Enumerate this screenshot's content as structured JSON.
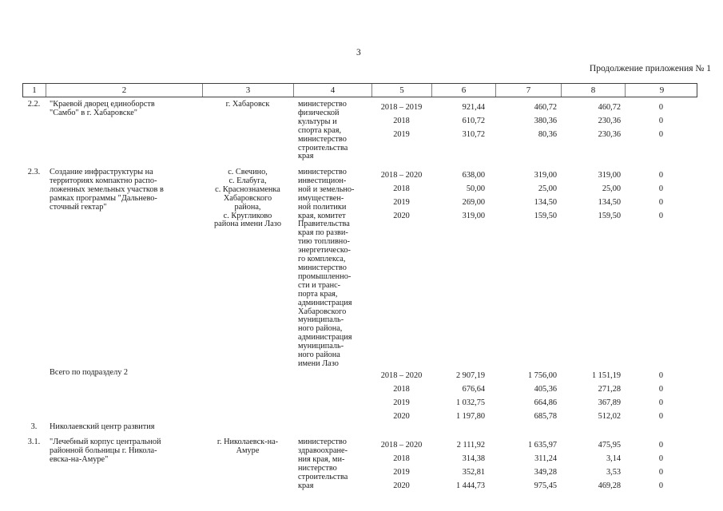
{
  "page": {
    "number": "3",
    "caption": "Продолжение приложения № 1"
  },
  "table": {
    "header_cols": [
      "1",
      "2",
      "3",
      "4",
      "5",
      "6",
      "7",
      "8",
      "9"
    ],
    "rows": [
      {
        "num": "2.2.",
        "name": "\"Краевой дворец единоборств\n\"Самбо\" в г. Хабаровске\"",
        "location": "г. Хабаровск",
        "agency": "министерство\nфизической\nкультуры и\nспорта края,\nминистерство\nстроительства\nкрая",
        "years": "2018 – 2019\n2018\n2019",
        "col6": "921,44\n610,72\n310,72",
        "col7": "460,72\n380,36\n80,36",
        "col8": "460,72\n230,36\n230,36",
        "col9": "0\n0\n0"
      },
      {
        "num": "2.3.",
        "name": "Создание инфраструктуры на\nтерриториях компактно распо-\nложенных земельных участков в\nрамках программы \"Дальнево-\nсточный гектар\"",
        "location": "с. Свечино,\nс. Елабуга,\nс. Краснознаменка\nХабаровского\nрайона,\nс. Кругликово\nрайона имени Лазо",
        "agency": "министерство\nинвестицион-\nной и земельно-\nимуществен-\nной политики\nкрая, комитет\nПравительства\nкрая по разви-\nтию топливно-\nэнергетическо-\nго комплекса,\nминистерство\nпромышленно-\nсти и транс-\nпорта края,\nадминистрация\nХабаровского\nмуниципаль-\nного района,\nадминистрация\nмуниципаль-\nного района\nимени Лазо",
        "years": "2018 – 2020\n2018\n2019\n2020",
        "col6": "638,00\n50,00\n269,00\n319,00",
        "col7": "319,00\n25,00\n134,50\n159,50",
        "col8": "319,00\n25,00\n134,50\n159,50",
        "col9": "0\n0\n0\n0"
      },
      {
        "num": "",
        "name": "Всего по подразделу 2",
        "location": "",
        "agency": "",
        "years": "2018 – 2020\n2018\n2019\n2020",
        "col6": "2 907,19\n676,64\n1 032,75\n1 197,80",
        "col7": "1 756,00\n405,36\n664,86\n685,78",
        "col8": "1 151,19\n271,28\n367,89\n512,02",
        "col9": "0\n0\n0\n0"
      },
      {
        "num": "3.",
        "name": "Николаевский центр развития",
        "location": "",
        "agency": "",
        "years": "",
        "col6": "",
        "col7": "",
        "col8": "",
        "col9": ""
      },
      {
        "num": "3.1.",
        "name": "\"Лечебный корпус центральной\nрайонной больницы г. Никола-\nевска-на-Амуре\"",
        "location": "г. Николаевск-на-\nАмуре",
        "agency": "министерство\nздравоохране-\nния края, ми-\nнистерство\nстроительства\nкрая",
        "years": "2018 – 2020\n2018\n2019\n2020",
        "col6": "2 111,92\n314,38\n352,81\n1 444,73",
        "col7": "1 635,97\n311,24\n349,28\n975,45",
        "col8": "475,95\n3,14\n3,53\n469,28",
        "col9": "0\n0\n0\n0"
      }
    ]
  }
}
